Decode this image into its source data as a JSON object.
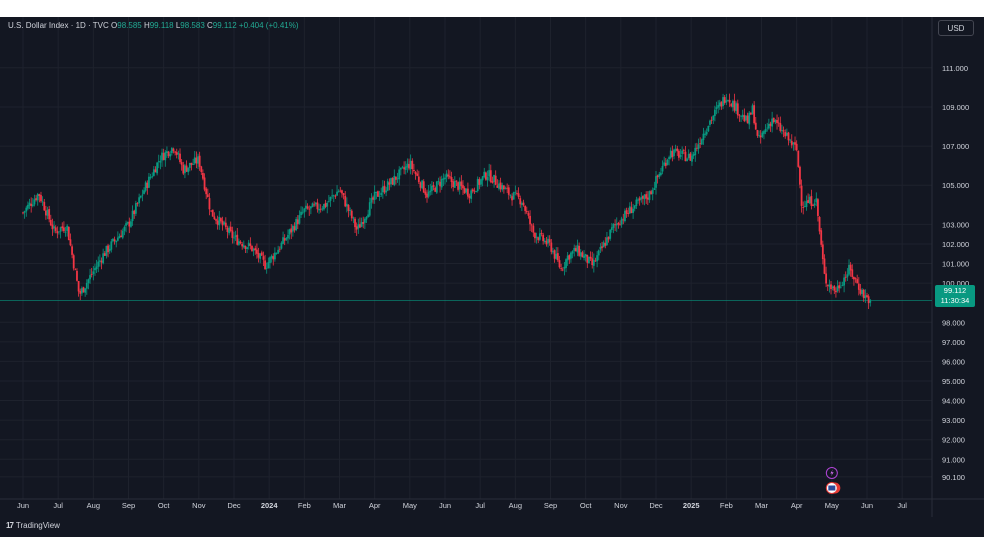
{
  "header": {
    "symbol_title": "U.S. Dollar Index · 1D · TVC",
    "open_label": "O",
    "open_value": "98.585",
    "high_label": "H",
    "high_value": "99.118",
    "low_label": "L",
    "low_value": "98.583",
    "close_label": "C",
    "close_value": "99.112",
    "change_text": "+0.404 (+0.41%)"
  },
  "currency_button": "USD",
  "last_price": {
    "value": "99.112",
    "countdown": "11:30:34"
  },
  "footer": {
    "logo_mark": "17",
    "logo_text": "TradingView"
  },
  "colors": {
    "up": "#089981",
    "down": "#f23645",
    "background": "#131722",
    "grid": "#1e222d",
    "text": "#d1d4dc"
  },
  "chart_data": {
    "type": "candlestick",
    "symbol": "U.S. Dollar Index",
    "interval": "1D",
    "ylim": [
      89.6,
      111.8
    ],
    "y_ticks": [
      111.0,
      109.0,
      107.0,
      105.0,
      103.0,
      102.0,
      101.0,
      100.0,
      98.0,
      97.0,
      96.0,
      95.0,
      94.0,
      93.0,
      92.0,
      91.0,
      90.1
    ],
    "y_tick_labels": [
      "111.000",
      "109.000",
      "107.000",
      "105.000",
      "103.000",
      "102.000",
      "101.000",
      "100.000",
      "98.000",
      "97.000",
      "96.000",
      "95.000",
      "94.000",
      "93.000",
      "92.000",
      "91.000",
      "90.100"
    ],
    "x_ticks": [
      "Jun",
      "Jul",
      "Aug",
      "Sep",
      "Oct",
      "Nov",
      "Dec",
      "2024",
      "Feb",
      "Mar",
      "Apr",
      "May",
      "Jun",
      "Jul",
      "Aug",
      "Sep",
      "Oct",
      "Nov",
      "Dec",
      "2025",
      "Feb",
      "Mar",
      "Apr",
      "May",
      "Jun",
      "Jul"
    ],
    "x_tick_bold": [
      false,
      false,
      false,
      false,
      false,
      false,
      false,
      true,
      false,
      false,
      false,
      false,
      false,
      false,
      false,
      false,
      false,
      false,
      false,
      true,
      false,
      false,
      false,
      false,
      false,
      false
    ],
    "x_tick_index": [
      0,
      1,
      2,
      3,
      4,
      5,
      6,
      7,
      8,
      9,
      10,
      11,
      12,
      13,
      14,
      15,
      16,
      17,
      18,
      19,
      20,
      21,
      22,
      23,
      24,
      25
    ],
    "x_start_month": 0,
    "x_end_month": 24.1,
    "last_price": 99.112,
    "price_anchors_month": [
      0,
      0.45,
      0.9,
      1.05,
      1.25,
      1.6,
      2.3,
      3.0,
      3.45,
      3.9,
      4.3,
      4.55,
      5.0,
      5.35,
      6.0,
      6.5,
      6.9,
      7.4,
      8.0,
      8.6,
      9.0,
      9.5,
      10.0,
      10.5,
      11.0,
      11.5,
      12.0,
      12.7,
      13.2,
      13.8,
      14.2,
      14.5,
      15.0,
      15.3,
      15.5,
      15.75,
      16.2,
      16.8,
      17.3,
      17.8,
      18.4,
      19.0,
      19.5,
      20.0,
      20.6,
      20.75,
      20.9,
      21.3,
      22.0,
      22.15,
      22.55,
      22.8,
      23.1,
      23.5,
      23.9,
      24.1
    ],
    "price_anchors_value": [
      103.6,
      104.6,
      102.6,
      102.8,
      102.9,
      99.4,
      101.5,
      103.0,
      104.8,
      106.4,
      107.0,
      105.8,
      106.3,
      103.6,
      102.3,
      101.8,
      100.9,
      102.1,
      103.7,
      104.0,
      104.8,
      102.7,
      104.4,
      105.2,
      106.1,
      104.5,
      105.4,
      104.6,
      105.6,
      104.6,
      104.2,
      102.6,
      101.9,
      100.7,
      101.4,
      101.7,
      100.9,
      102.9,
      103.8,
      104.5,
      106.7,
      106.4,
      108.2,
      109.6,
      108.2,
      108.9,
      107.2,
      108.4,
      106.8,
      104.0,
      104.3,
      100.2,
      99.6,
      100.7,
      99.4,
      99.1
    ]
  }
}
